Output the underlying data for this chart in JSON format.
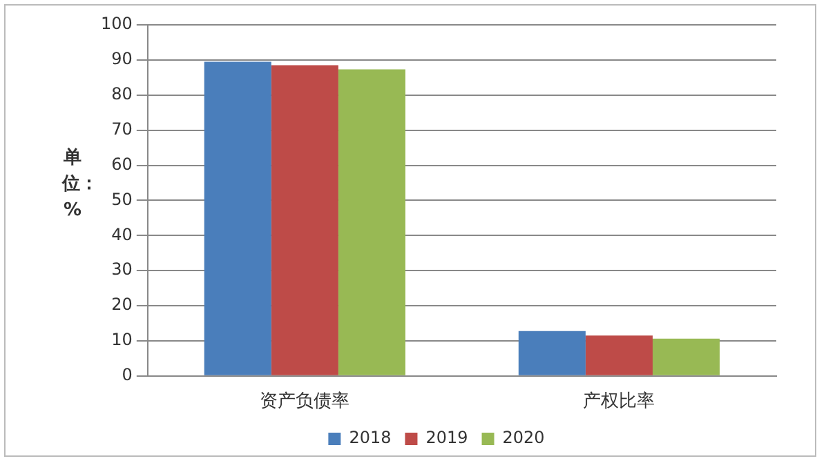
{
  "chart_data": {
    "type": "bar",
    "ylabel": "单位：%",
    "categories": [
      "资产负债率",
      "产权比率"
    ],
    "series": [
      {
        "name": "2018",
        "color": "#4a7ebb",
        "values": [
          89.5,
          12.8
        ]
      },
      {
        "name": "2019",
        "color": "#be4b48",
        "values": [
          88.5,
          11.5
        ]
      },
      {
        "name": "2020",
        "color": "#98b954",
        "values": [
          87.3,
          10.6
        ]
      }
    ],
    "ylim": [
      0,
      100
    ],
    "yticks": [
      0,
      10,
      20,
      30,
      40,
      50,
      60,
      70,
      80,
      90,
      100
    ],
    "grid": "y",
    "legend": "bottom"
  }
}
